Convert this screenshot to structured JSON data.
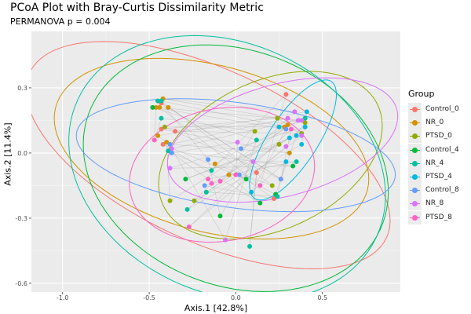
{
  "chart_data": {
    "type": "scatter",
    "title": "PCoA Plot with Bray-Curtis Dissimilarity Metric",
    "subtitle": "PERMANOVA p = 0.004",
    "xlabel": "Axis.1  [42.8%]",
    "ylabel": "Axis.2  [11.4%]",
    "xlim": [
      -1.18,
      0.95
    ],
    "ylim": [
      -0.64,
      0.56
    ],
    "xticks": [
      -1.0,
      -0.5,
      0.0,
      0.5
    ],
    "xtick_labels": [
      "-1.0",
      "-0.5",
      "0.0",
      "0.5"
    ],
    "yticks": [
      0.3,
      0.0,
      -0.3,
      -0.6
    ],
    "ytick_labels": [
      "0.3",
      "0.0",
      "-0.3",
      "-0.6"
    ],
    "grid": true,
    "legend_title": "Group",
    "legend_position": "right",
    "series": [
      {
        "name": "Control_0",
        "color": "#F8766D",
        "points": [
          [
            -0.43,
            0.23
          ],
          [
            -0.43,
            0.11
          ],
          [
            -0.35,
            0.1
          ],
          [
            -0.42,
            0.04
          ],
          [
            0.29,
            0.27
          ],
          [
            0.12,
            -0.09
          ],
          [
            0.26,
            -0.12
          ],
          [
            0.22,
            -0.21
          ]
        ],
        "ellipse": {
          "center": [
            -0.16,
            -0.01
          ],
          "u": [
            1.03,
            -0.38
          ],
          "v": [
            -0.21,
            -0.36
          ]
        }
      },
      {
        "name": "NR_0",
        "color": "#D39200",
        "points": [
          [
            -0.42,
            0.25
          ],
          [
            -0.46,
            0.21
          ],
          [
            -0.44,
            0.21
          ],
          [
            -0.39,
            0.21
          ],
          [
            -0.45,
            0.08
          ],
          [
            -0.4,
            0.05
          ],
          [
            -0.12,
            -0.05
          ],
          [
            -0.04,
            -0.1
          ],
          [
            0.3,
            0.13
          ],
          [
            0.28,
            0.12
          ],
          [
            0.31,
            0.0
          ]
        ],
        "ellipse": {
          "center": [
            -0.14,
            0.02
          ],
          "u": [
            0.9,
            -0.19
          ],
          "v": [
            -0.12,
            -0.37
          ]
        }
      },
      {
        "name": "PTSD_0",
        "color": "#93AA00",
        "points": [
          [
            -0.41,
            0.12
          ],
          [
            -0.38,
            -0.22
          ],
          [
            -0.24,
            -0.22
          ],
          [
            0.24,
            0.16
          ],
          [
            0.4,
            0.14
          ],
          [
            0.11,
            0.1
          ],
          [
            0.38,
            0.09
          ],
          [
            0.25,
            0.04
          ],
          [
            0.21,
            -0.15
          ]
        ],
        "ellipse": {
          "center": [
            0.2,
            -0.01
          ],
          "u": [
            0.62,
            0.23
          ],
          "v": [
            0.18,
            -0.31
          ]
        }
      },
      {
        "name": "Control_4",
        "color": "#00BA38",
        "points": [
          [
            -0.48,
            0.21
          ],
          [
            -0.29,
            -0.12
          ],
          [
            -0.09,
            -0.29
          ],
          [
            0.33,
            -0.06
          ],
          [
            0.06,
            -0.12
          ],
          [
            0.23,
            -0.19
          ],
          [
            0.14,
            -0.23
          ]
        ],
        "ellipse": {
          "center": [
            0.0,
            -0.07
          ],
          "u": [
            0.85,
            -0.25
          ],
          "v": [
            -0.23,
            -0.51
          ]
        }
      },
      {
        "name": "NR_4",
        "color": "#00C19F",
        "points": [
          [
            -0.45,
            0.24
          ],
          [
            -0.43,
            0.24
          ],
          [
            -0.43,
            0.16
          ],
          [
            -0.39,
            0.01
          ],
          [
            -0.14,
            -0.08
          ],
          [
            -0.17,
            -0.18
          ],
          [
            -0.28,
            -0.26
          ],
          [
            0.4,
            0.16
          ],
          [
            0.12,
            0.06
          ],
          [
            0.35,
            -0.04
          ],
          [
            0.24,
            -0.2
          ],
          [
            0.08,
            -0.43
          ]
        ],
        "ellipse": {
          "center": [
            -0.05,
            -0.07
          ],
          "u": [
            0.86,
            -0.32
          ],
          "v": [
            -0.31,
            -0.52
          ]
        }
      },
      {
        "name": "PTSD_4",
        "color": "#00B9E3",
        "points": [
          [
            0.41,
            0.19
          ],
          [
            0.25,
            0.12
          ],
          [
            0.4,
            0.12
          ],
          [
            0.35,
            0.08
          ],
          [
            0.31,
            0.07
          ],
          [
            0.38,
            0.04
          ],
          [
            0.29,
            -0.04
          ],
          [
            0.09,
            -0.18
          ]
        ],
        "ellipse": {
          "center": [
            0.33,
            0.06
          ],
          "u": [
            0.22,
            0.27
          ],
          "v": [
            0.12,
            -0.06
          ]
        }
      },
      {
        "name": "Control_8",
        "color": "#619CFF",
        "points": [
          [
            -0.38,
            0.04
          ],
          [
            -0.37,
            0.0
          ],
          [
            -0.16,
            -0.03
          ],
          [
            -0.18,
            -0.15
          ],
          [
            0.03,
            0.02
          ],
          [
            0.02,
            -0.1
          ],
          [
            0.29,
            0.11
          ],
          [
            0.26,
            -0.12
          ]
        ],
        "ellipse": {
          "center": [
            0.0,
            -0.01
          ],
          "u": [
            0.92,
            -0.1
          ],
          "v": [
            -0.04,
            -0.24
          ]
        }
      },
      {
        "name": "NR_8",
        "color": "#DB72FB",
        "points": [
          [
            -0.37,
            0.02
          ],
          [
            -0.38,
            -0.07
          ],
          [
            0.01,
            0.05
          ],
          [
            -0.06,
            -0.4
          ],
          [
            0.34,
            0.19
          ],
          [
            0.3,
            0.16
          ],
          [
            0.36,
            0.15
          ],
          [
            0.38,
            0.15
          ],
          [
            0.38,
            0.08
          ],
          [
            0.29,
            0.03
          ],
          [
            0.1,
            -0.04
          ]
        ],
        "ellipse": {
          "center": [
            0.27,
            0.06
          ],
          "u": [
            0.66,
            0.14
          ],
          "v": [
            0.08,
            -0.25
          ]
        }
      },
      {
        "name": "PTSD_8",
        "color": "#FF61C3",
        "points": [
          [
            -0.47,
            0.06
          ],
          [
            -0.16,
            -0.12
          ],
          [
            -0.14,
            -0.14
          ],
          [
            -0.09,
            -0.13
          ],
          [
            0.0,
            -0.1
          ],
          [
            -0.27,
            -0.34
          ],
          [
            0.32,
            0.11
          ],
          [
            0.14,
            -0.15
          ]
        ],
        "ellipse": {
          "center": [
            -0.08,
            -0.1
          ],
          "u": [
            0.53,
            0.08
          ],
          "v": [
            0.07,
            -0.3
          ]
        }
      }
    ]
  }
}
